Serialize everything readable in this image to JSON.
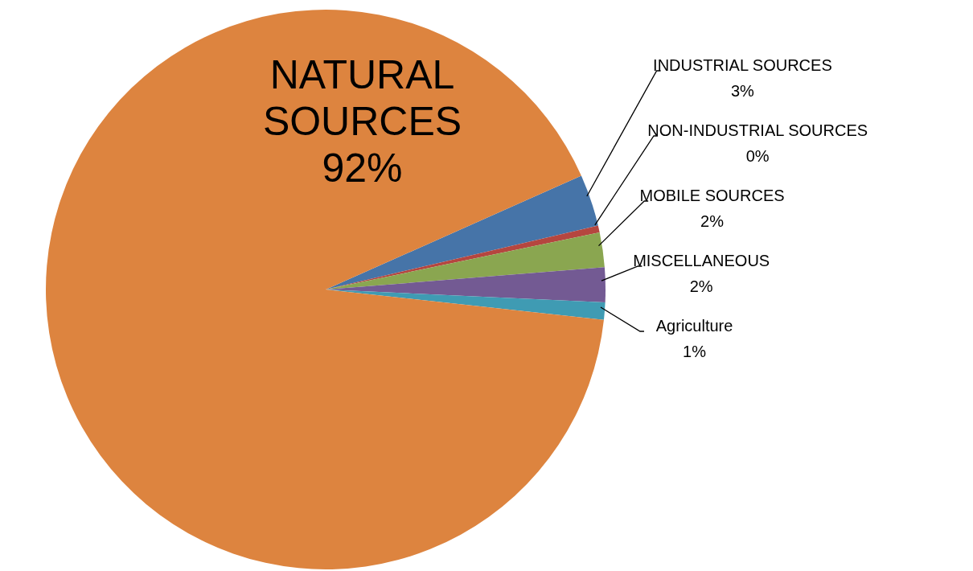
{
  "chart_data": {
    "type": "pie",
    "categories": [
      "INDUSTRIAL SOURCES",
      "NON-INDUSTRIAL SOURCES",
      "MOBILE SOURCES",
      "MISCELLANEOUS",
      "Agriculture",
      "NATURAL SOURCES"
    ],
    "values": [
      3,
      0.4,
      2,
      2,
      1,
      91.6
    ],
    "value_labels": [
      "3%",
      "0%",
      "2%",
      "2%",
      "1%",
      "92%"
    ],
    "colors": [
      "#4674a8",
      "#b5463f",
      "#8aa650",
      "#735a93",
      "#3f9bb3",
      "#dd843f"
    ],
    "legend": false
  }
}
